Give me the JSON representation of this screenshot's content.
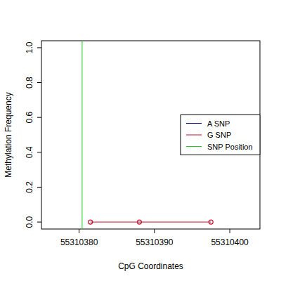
{
  "chart_data": {
    "type": "line",
    "x_label": "CpG Coordinates",
    "y_label": "Methylation Frequency",
    "x": [
      55310381.5,
      55310388,
      55310397.5
    ],
    "series": [
      {
        "name": "A SNP",
        "color": "#00008B",
        "values": [
          null,
          null,
          null
        ],
        "line_style": "solid"
      },
      {
        "name": "G SNP",
        "color": "#C8102E",
        "values": [
          0,
          0,
          0
        ],
        "marker": "circle",
        "line_style": "solid"
      }
    ],
    "snp_position": {
      "name": "SNP Position",
      "color": "#22CC22",
      "x": 55310380.4
    },
    "xlim": [
      55310375,
      55310404
    ],
    "xticks": [
      55310380,
      55310390,
      55310400
    ],
    "ylim": [
      -0.04,
      1.04
    ],
    "yticks": [
      {
        "value": 0,
        "label": "0.0"
      },
      0.2,
      0.4,
      0.6,
      0.8,
      {
        "value": 1,
        "label": "1.0"
      }
    ],
    "legend": "right",
    "grid": false
  }
}
